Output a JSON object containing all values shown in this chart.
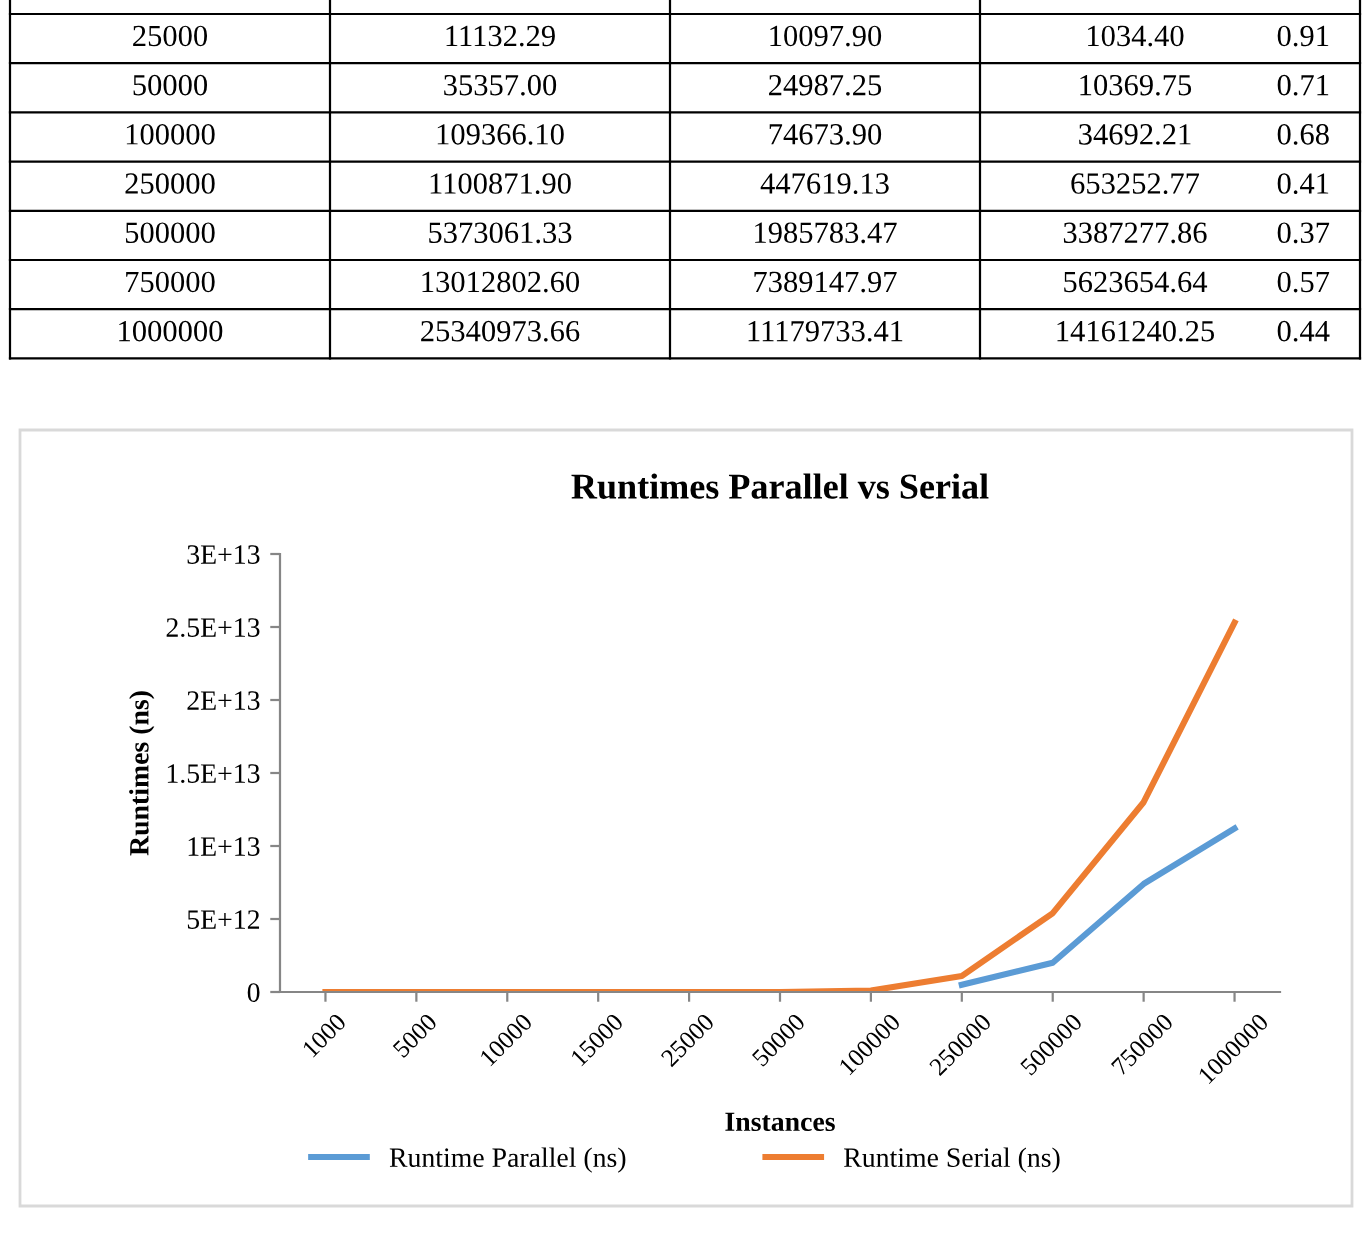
{
  "chart_data": [
    {
      "type": "other",
      "annotations": [
        "25000",
        "11132.29",
        "10097.90",
        "1034.40",
        "0.91",
        "50000",
        "35357.00",
        "24987.25",
        "10369.75",
        "0.71",
        "100000",
        "109366.10",
        "74673.90",
        "34692.21",
        "0.68",
        "250000",
        "1100871.90",
        "447619.13",
        "653252.77",
        "0.41",
        "500000",
        "5373061.33",
        "1985783.47",
        "3387277.86",
        "0.37",
        "750000",
        "13012802.60",
        "7389147.97",
        "5623654.64",
        "0.57",
        "1000000",
        "25340973.66",
        "11179733.41",
        "14161240.25",
        "0.44"
      ]
    },
    {
      "type": "line",
      "title": "Runtimes Parallel vs Serial",
      "xlabel": "Instances",
      "ylabel": "Runtimes (ns)",
      "categories": [
        "1000",
        "5000",
        "10000",
        "15000",
        "25000",
        "50000",
        "100000",
        "250000",
        "500000",
        "750000",
        "1000000"
      ],
      "series": [
        {
          "name": "Runtime Parallel (ns)",
          "color": "#5b9bd5",
          "values": [
            null,
            null,
            null,
            null,
            null,
            null,
            null,
            500000000000.0,
            2000000000000.0,
            7400000000000.0,
            11200000000000.0
          ]
        },
        {
          "name": "Runtime Serial (ns)",
          "color": "#ed7d31",
          "values": [
            0,
            0,
            0,
            0,
            0,
            0,
            100000000000.0,
            1100000000000.0,
            5400000000000.0,
            13000000000000.0,
            25300000000000.0
          ]
        }
      ],
      "ylim": [
        0,
        30000000000000.0
      ],
      "yticks": [
        0,
        {
          "value": 5000000000000.0,
          "label": "5E+12"
        },
        {
          "value": 10000000000000.0,
          "label": "1E+13"
        },
        {
          "value": 15000000000000.0,
          "label": "1.5E+13"
        },
        {
          "value": 20000000000000.0,
          "label": "2E+13"
        },
        {
          "value": 25000000000000.0,
          "label": "2.5E+13"
        },
        {
          "value": 30000000000000.0,
          "label": "3E+13"
        }
      ],
      "legend": "bottom",
      "grid": false,
      "marker": "none",
      "line_style": "solid"
    }
  ]
}
